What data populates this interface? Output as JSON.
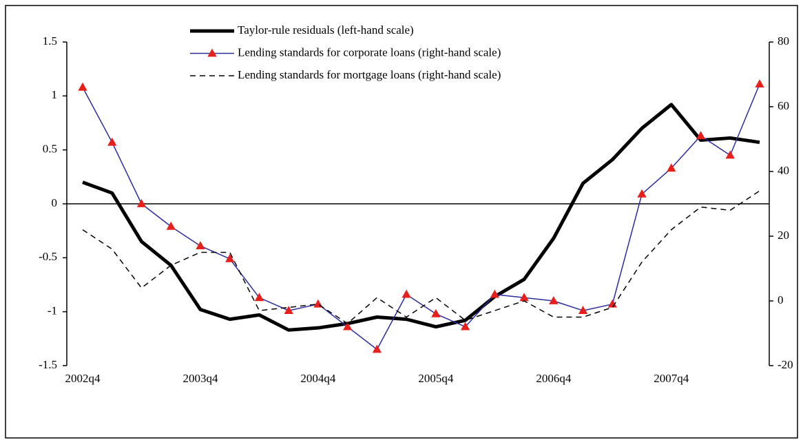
{
  "chart_data": {
    "type": "line",
    "categories": [
      "2002q4",
      null,
      null,
      null,
      "2003q4",
      null,
      null,
      null,
      "2004q4",
      null,
      null,
      null,
      "2005q4",
      null,
      null,
      null,
      "2006q4",
      null,
      null,
      null,
      "2007q4",
      null,
      null,
      null
    ],
    "series": [
      {
        "name": "Taylor-rule residuals (left-hand scale)",
        "color": "#000000",
        "axis": "y",
        "line_style": "solid",
        "values": [
          0.2,
          0.1,
          -0.35,
          -0.57,
          -0.98,
          -1.07,
          -1.03,
          -1.17,
          -1.15,
          -1.11,
          -1.05,
          -1.07,
          -1.14,
          -1.08,
          -0.86,
          -0.7,
          -0.32,
          0.19,
          0.41,
          0.7,
          0.92,
          0.59,
          0.61,
          0.57
        ]
      },
      {
        "name": "Lending standards for corporate loans (right-hand scale)",
        "color": "#2b2b9c",
        "axis": "y2",
        "line_style": "solid",
        "marker": "triangle",
        "marker_color": "#e8201c",
        "values": [
          66,
          49,
          30,
          23,
          17,
          13,
          1,
          -3,
          -1,
          -8,
          -15,
          2,
          -4,
          -8,
          2,
          1,
          0,
          -3,
          -1,
          33,
          41,
          51,
          45,
          67
        ]
      },
      {
        "name": "Lending standards for mortgage loans (right-hand scale)",
        "color": "#000000",
        "axis": "y2",
        "line_style": "dashed",
        "values": [
          22,
          16,
          4,
          11,
          15,
          15,
          -3,
          -2,
          -1,
          -7,
          1,
          -5,
          1,
          -6,
          -3,
          0,
          -5,
          -5,
          -2,
          12,
          22,
          29,
          28,
          34
        ]
      }
    ],
    "ylim": [
      -1.5,
      1.5
    ],
    "yticks": [
      -1.5,
      -1,
      -0.5,
      0,
      0.5,
      1,
      1.5
    ],
    "y2lim": [
      -20,
      80
    ],
    "y2ticks": [
      -20,
      0,
      20,
      40,
      60,
      80
    ]
  }
}
